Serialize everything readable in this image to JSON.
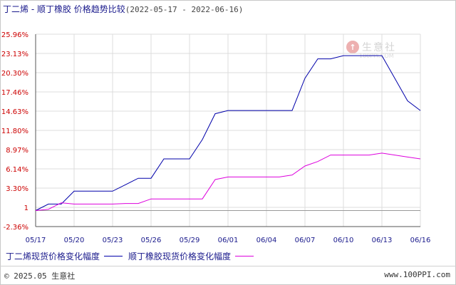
{
  "title": {
    "main": "丁二烯 - 顺丁橡胶 价格趋势比较",
    "range": "(2022-05-17 - 2022-06-16)"
  },
  "watermark": {
    "text": "生意社",
    "url": "100PPI.COM"
  },
  "legend": {
    "items": [
      {
        "label": "丁二烯现货价格变化幅度",
        "color": "#0000aa"
      },
      {
        "label": "顺丁橡胶现货价格变化幅度",
        "color": "#dd00dd"
      }
    ]
  },
  "footer": {
    "left": "© 2025.05 生意社",
    "right": "www.100PPI.com"
  },
  "chart_data": {
    "type": "line",
    "title": "丁二烯 - 顺丁橡胶 价格趋势比较",
    "xlabel": "",
    "ylabel": "",
    "x_ticks": [
      "05/17",
      "05/20",
      "05/23",
      "05/26",
      "05/29",
      "06/01",
      "06/04",
      "06/07",
      "06/10",
      "06/13",
      "06/16"
    ],
    "y_ticks": [
      "25.96%",
      "23.13%",
      "20.30%",
      "17.46%",
      "14.63%",
      "11.80%",
      "8.97%",
      "6.14%",
      "3.30%",
      "1",
      "-2.36%"
    ],
    "ylim": [
      -2.36,
      25.96
    ],
    "grid": true,
    "legend_position": "bottom",
    "x": [
      "05/17",
      "05/18",
      "05/19",
      "05/20",
      "05/21",
      "05/22",
      "05/23",
      "05/24",
      "05/25",
      "05/26",
      "05/27",
      "05/28",
      "05/29",
      "05/30",
      "05/31",
      "06/01",
      "06/02",
      "06/03",
      "06/04",
      "06/05",
      "06/06",
      "06/07",
      "06/08",
      "06/09",
      "06/10",
      "06/11",
      "06/12",
      "06/13",
      "06/14",
      "06/15",
      "06/16"
    ],
    "series": [
      {
        "name": "丁二烯现货价格变化幅度",
        "color": "#0000aa",
        "values": [
          0.0,
          0.95,
          0.95,
          2.85,
          2.85,
          2.85,
          2.85,
          3.8,
          4.75,
          4.75,
          7.6,
          7.6,
          7.6,
          10.45,
          14.25,
          14.73,
          14.73,
          14.73,
          14.73,
          14.73,
          14.73,
          19.48,
          22.33,
          22.33,
          22.8,
          22.8,
          22.8,
          22.8,
          19.48,
          16.15,
          14.73
        ]
      },
      {
        "name": "顺丁橡胶现货价格变化幅度",
        "color": "#dd00dd",
        "values": [
          0.0,
          0.19,
          1.14,
          0.95,
          0.95,
          0.95,
          0.95,
          1.04,
          1.04,
          1.71,
          1.71,
          1.71,
          1.71,
          1.71,
          4.56,
          4.94,
          4.94,
          4.94,
          4.94,
          4.94,
          5.23,
          6.56,
          7.22,
          8.17,
          8.17,
          8.17,
          8.17,
          8.45,
          8.17,
          7.88,
          7.6
        ]
      }
    ]
  }
}
